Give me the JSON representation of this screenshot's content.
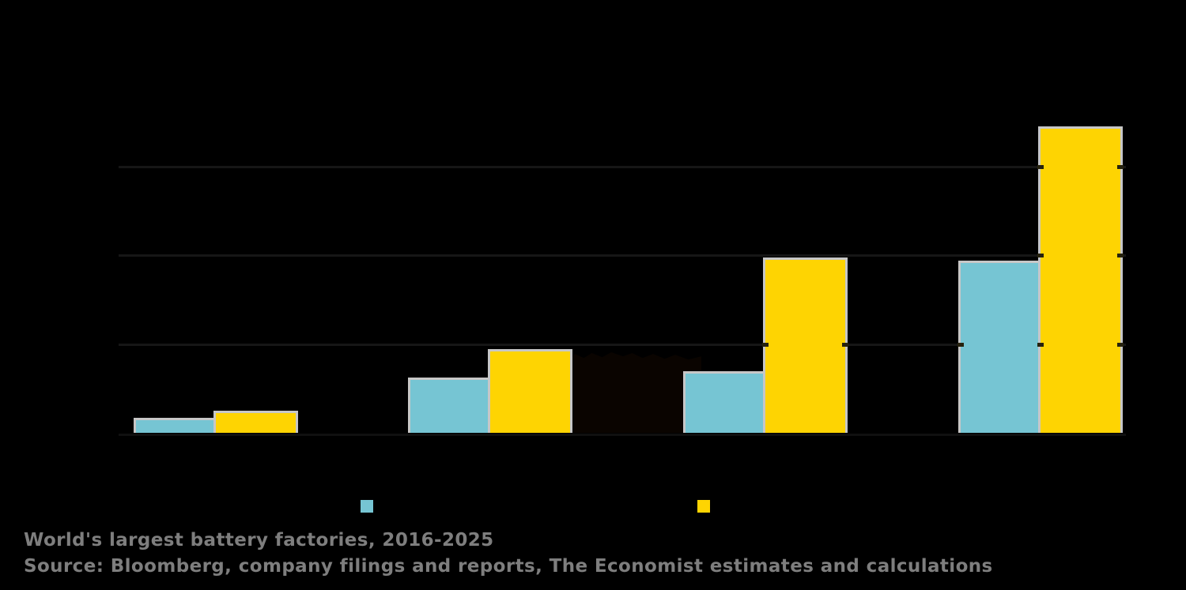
{
  "background_color": "#000000",
  "chart_data": {
    "type": "bar",
    "title": "",
    "categories": [
      "",
      "",
      "",
      ""
    ],
    "series": [
      {
        "name": "",
        "color": "#76c5d3",
        "values": [
          0.14,
          0.6,
          0.67,
          1.91
        ]
      },
      {
        "name": "",
        "color": "#fed402",
        "values": [
          0.22,
          0.92,
          1.95,
          3.42
        ]
      }
    ],
    "ylim": [
      0,
      4
    ],
    "gridlines": [
      1,
      2,
      3
    ],
    "grid_on": true,
    "grid_color": "#161616",
    "bar_border_color": "#c7c7c7",
    "legend_position": "bottom-center",
    "axis_tick_labels_visible": false
  },
  "legend": {
    "items": [
      {
        "swatch_color": "#76c5d3",
        "label": ""
      },
      {
        "swatch_color": "#fed402",
        "label": ""
      }
    ]
  },
  "annotation_block": {
    "color": "#0a0400"
  },
  "footer": {
    "line1": "World's largest battery factories, 2016-2025",
    "line2": "Source: Bloomberg, company filings and reports, The Economist estimates and calculations",
    "text_color": "#7e7e7e"
  }
}
